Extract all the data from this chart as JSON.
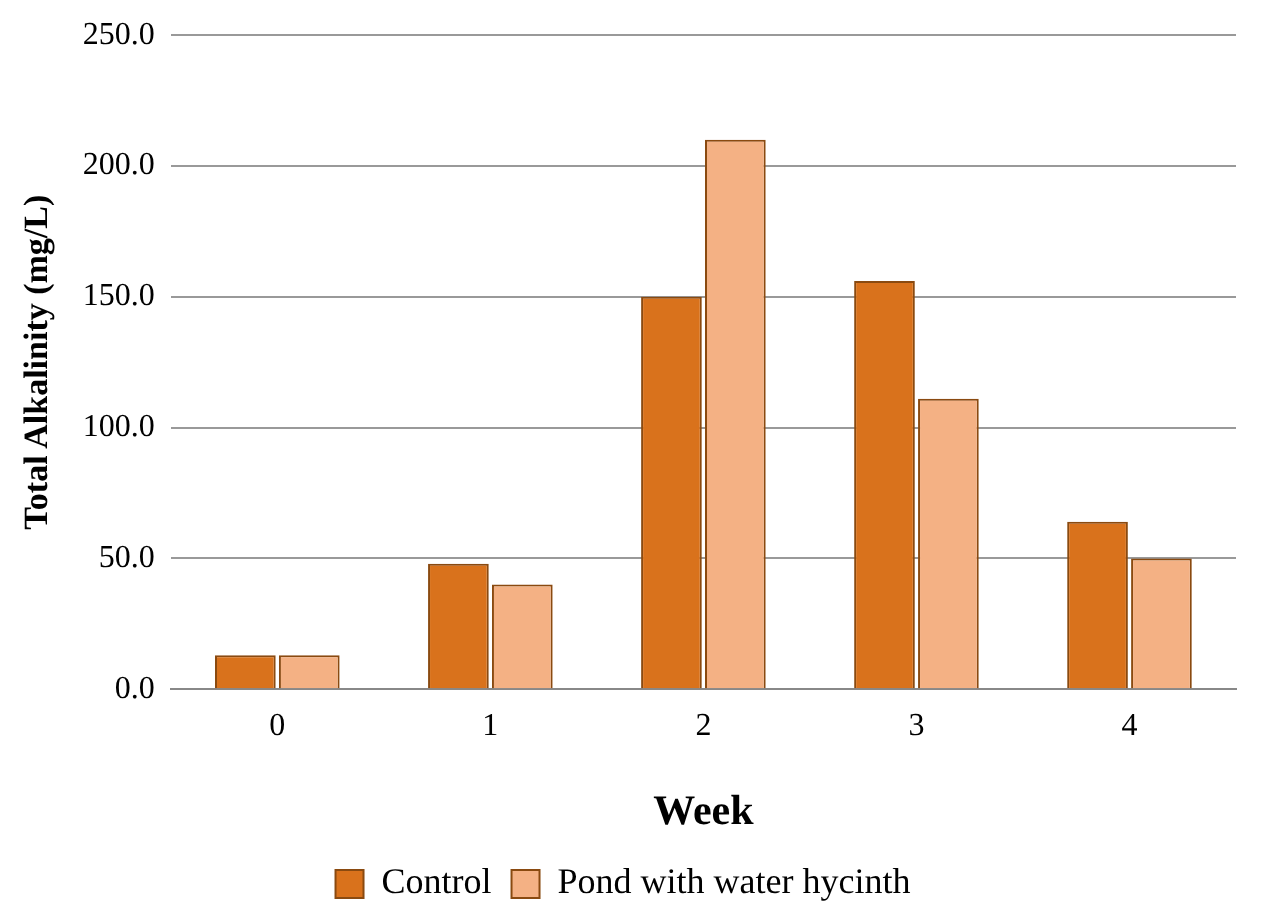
{
  "chart_data": {
    "type": "bar",
    "xlabel": "Week",
    "ylabel": "Total Alkalinity (mg/L)",
    "categories": [
      "0",
      "1",
      "2",
      "3",
      "4"
    ],
    "series": [
      {
        "name": "Control",
        "color": "#d9721c",
        "values": [
          13,
          48,
          150,
          156,
          64
        ]
      },
      {
        "name": "Pond with water hycinth",
        "color": "#f4b184",
        "values": [
          13,
          40,
          210,
          111,
          50
        ]
      }
    ],
    "ylim": [
      0,
      250
    ],
    "yticks": [
      {
        "value": 0,
        "label": "0.0"
      },
      {
        "value": 50,
        "label": "50.0"
      },
      {
        "value": 100,
        "label": "100.0"
      },
      {
        "value": 150,
        "label": "150.0"
      },
      {
        "value": 200,
        "label": "200.0"
      },
      {
        "value": 250,
        "label": "250.0"
      }
    ],
    "grid": "y",
    "legend": "bottom"
  }
}
